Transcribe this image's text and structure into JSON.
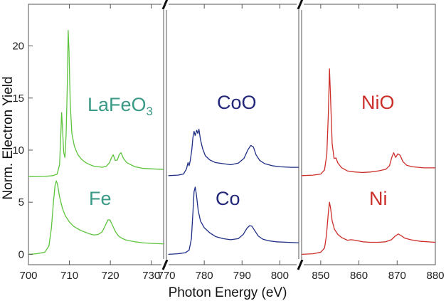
{
  "chart_data": {
    "type": "line",
    "title": "",
    "xlabel": "Photon Energy (eV)",
    "ylabel": "Norm. Electron Yield",
    "ylim": [
      -1,
      24
    ],
    "yticks": [
      0,
      5,
      10,
      15,
      20
    ],
    "grid": false,
    "axis_break_marker": "/",
    "panels": [
      {
        "element": "Fe",
        "xlim": [
          700,
          733
        ],
        "xticks": [
          700,
          710,
          720,
          730
        ],
        "color": "#5cc43c",
        "label_color": "#3a9a86",
        "series": [
          {
            "name": "LaFeO3",
            "label_text": "LaFeO",
            "label_sub": "3",
            "points": [
              [
                700,
                7.45
              ],
              [
                704,
                7.48
              ],
              [
                706,
                7.55
              ],
              [
                707,
                7.7
              ],
              [
                707.6,
                8.6
              ],
              [
                707.9,
                11.5
              ],
              [
                708.1,
                13.6
              ],
              [
                708.3,
                12.2
              ],
              [
                708.6,
                9.8
              ],
              [
                708.9,
                9.3
              ],
              [
                709.2,
                11.5
              ],
              [
                709.5,
                16.5
              ],
              [
                709.7,
                21.5
              ],
              [
                709.9,
                19.5
              ],
              [
                710.2,
                14.5
              ],
              [
                710.6,
                11.6
              ],
              [
                711.2,
                10.4
              ],
              [
                712,
                9.6
              ],
              [
                713,
                9.1
              ],
              [
                714,
                8.8
              ],
              [
                715,
                8.6
              ],
              [
                716,
                8.45
              ],
              [
                717,
                8.4
              ],
              [
                718,
                8.35
              ],
              [
                719,
                8.45
              ],
              [
                719.8,
                8.8
              ],
              [
                720.3,
                9.3
              ],
              [
                720.7,
                9.55
              ],
              [
                721.2,
                9.0
              ],
              [
                721.7,
                9.05
              ],
              [
                722.2,
                9.6
              ],
              [
                722.6,
                9.75
              ],
              [
                723.2,
                9.2
              ],
              [
                724,
                8.8
              ],
              [
                726,
                8.4
              ],
              [
                728,
                8.25
              ],
              [
                730,
                8.2
              ],
              [
                733,
                8.15
              ]
            ]
          },
          {
            "name": "Fe",
            "label_text": "Fe",
            "points": [
              [
                700,
                0.0
              ],
              [
                702,
                0.05
              ],
              [
                704,
                0.2
              ],
              [
                705,
                0.8
              ],
              [
                705.6,
                2.5
              ],
              [
                706.1,
                5.0
              ],
              [
                706.5,
                6.6
              ],
              [
                706.8,
                7.05
              ],
              [
                707.1,
                6.7
              ],
              [
                707.6,
                5.5
              ],
              [
                708.3,
                4.4
              ],
              [
                709,
                3.7
              ],
              [
                710,
                3.1
              ],
              [
                711,
                2.7
              ],
              [
                712,
                2.45
              ],
              [
                713,
                2.25
              ],
              [
                714,
                2.1
              ],
              [
                715,
                1.95
              ],
              [
                716,
                1.85
              ],
              [
                717,
                1.9
              ],
              [
                718,
                2.15
              ],
              [
                718.8,
                2.8
              ],
              [
                719.4,
                3.3
              ],
              [
                719.9,
                3.3
              ],
              [
                720.5,
                2.8
              ],
              [
                721.2,
                2.2
              ],
              [
                722,
                1.75
              ],
              [
                723,
                1.5
              ],
              [
                724,
                1.35
              ],
              [
                726,
                1.2
              ],
              [
                728,
                1.1
              ],
              [
                730,
                1.05
              ],
              [
                733,
                1.0
              ]
            ]
          }
        ]
      },
      {
        "element": "Co",
        "xlim": [
          770,
          805
        ],
        "xticks": [
          770,
          780,
          790,
          800
        ],
        "color": "#1f2f86",
        "label_color": "#22277a",
        "series": [
          {
            "name": "CoO",
            "label_text": "CoO",
            "points": [
              [
                770.5,
                7.55
              ],
              [
                773,
                7.6
              ],
              [
                774.5,
                7.7
              ],
              [
                775.3,
                8.2
              ],
              [
                775.7,
                8.8
              ],
              [
                776,
                8.5
              ],
              [
                776.3,
                9.0
              ],
              [
                776.7,
                10.0
              ],
              [
                777,
                11.2
              ],
              [
                777.3,
                11.8
              ],
              [
                777.6,
                11.4
              ],
              [
                778,
                11.9
              ],
              [
                778.3,
                11.6
              ],
              [
                778.6,
                12.0
              ],
              [
                779,
                11.0
              ],
              [
                779.6,
                10.1
              ],
              [
                780.3,
                9.45
              ],
              [
                781.5,
                9.05
              ],
              [
                783,
                8.8
              ],
              [
                785,
                8.7
              ],
              [
                787,
                8.6
              ],
              [
                789,
                8.75
              ],
              [
                790.5,
                9.2
              ],
              [
                791.5,
                10.0
              ],
              [
                792.3,
                10.45
              ],
              [
                793,
                10.3
              ],
              [
                793.7,
                9.55
              ],
              [
                794.7,
                9.0
              ],
              [
                796,
                8.7
              ],
              [
                798,
                8.5
              ],
              [
                800,
                8.4
              ],
              [
                803,
                8.35
              ],
              [
                805,
                8.35
              ]
            ]
          },
          {
            "name": "Co",
            "label_text": "Co",
            "points": [
              [
                770.5,
                0.0
              ],
              [
                773,
                0.05
              ],
              [
                775,
                0.15
              ],
              [
                776,
                0.4
              ],
              [
                776.6,
                1.5
              ],
              [
                777,
                4.0
              ],
              [
                777.3,
                6.0
              ],
              [
                777.6,
                6.45
              ],
              [
                777.9,
                5.8
              ],
              [
                778.4,
                4.2
              ],
              [
                779,
                3.2
              ],
              [
                780,
                2.55
              ],
              [
                781.5,
                2.05
              ],
              [
                783,
                1.7
              ],
              [
                785,
                1.5
              ],
              [
                787,
                1.4
              ],
              [
                789,
                1.5
              ],
              [
                790.3,
                1.9
              ],
              [
                791.3,
                2.5
              ],
              [
                792,
                2.75
              ],
              [
                792.6,
                2.7
              ],
              [
                793.3,
                2.3
              ],
              [
                794.3,
                1.75
              ],
              [
                795.5,
                1.45
              ],
              [
                797,
                1.3
              ],
              [
                799,
                1.2
              ],
              [
                802,
                1.15
              ],
              [
                805,
                1.1
              ]
            ]
          }
        ]
      },
      {
        "element": "Ni",
        "xlim": [
          845,
          880
        ],
        "xticks": [
          850,
          860,
          870,
          880
        ],
        "color": "#cc2f2a",
        "label_color": "#cc2f2a",
        "series": [
          {
            "name": "NiO",
            "label_text": "NiO",
            "points": [
              [
                845,
                7.55
              ],
              [
                848,
                7.6
              ],
              [
                850,
                7.7
              ],
              [
                851,
                8.1
              ],
              [
                851.6,
                9.6
              ],
              [
                852,
                13.5
              ],
              [
                852.3,
                17.8
              ],
              [
                852.6,
                14.8
              ],
              [
                853,
                10.6
              ],
              [
                853.5,
                9.2
              ],
              [
                854,
                9.25
              ],
              [
                854.5,
                8.75
              ],
              [
                855.5,
                8.3
              ],
              [
                857,
                8.0
              ],
              [
                859,
                7.9
              ],
              [
                861,
                7.85
              ],
              [
                863,
                7.9
              ],
              [
                865,
                8.0
              ],
              [
                867,
                8.15
              ],
              [
                868,
                8.5
              ],
              [
                868.6,
                9.3
              ],
              [
                869.1,
                9.75
              ],
              [
                869.6,
                9.3
              ],
              [
                870.2,
                9.65
              ],
              [
                870.8,
                9.5
              ],
              [
                871.5,
                8.9
              ],
              [
                872.5,
                8.55
              ],
              [
                874,
                8.4
              ],
              [
                877,
                8.3
              ],
              [
                880,
                8.3
              ]
            ]
          },
          {
            "name": "Ni",
            "label_text": "Ni",
            "points": [
              [
                845,
                0.0
              ],
              [
                848,
                0.05
              ],
              [
                850,
                0.2
              ],
              [
                851,
                0.6
              ],
              [
                851.5,
                1.8
              ],
              [
                852,
                4.0
              ],
              [
                852.3,
                5.0
              ],
              [
                852.6,
                4.4
              ],
              [
                853,
                3.2
              ],
              [
                853.6,
                2.4
              ],
              [
                854.5,
                1.9
              ],
              [
                855.5,
                1.6
              ],
              [
                857,
                1.35
              ],
              [
                858,
                1.4
              ],
              [
                859,
                1.35
              ],
              [
                861,
                1.2
              ],
              [
                863,
                1.15
              ],
              [
                865,
                1.15
              ],
              [
                867,
                1.2
              ],
              [
                868.5,
                1.4
              ],
              [
                869.5,
                1.75
              ],
              [
                870.3,
                1.95
              ],
              [
                871,
                1.8
              ],
              [
                872,
                1.55
              ],
              [
                873.5,
                1.4
              ],
              [
                876,
                1.25
              ],
              [
                880,
                1.15
              ]
            ]
          }
        ]
      }
    ]
  }
}
